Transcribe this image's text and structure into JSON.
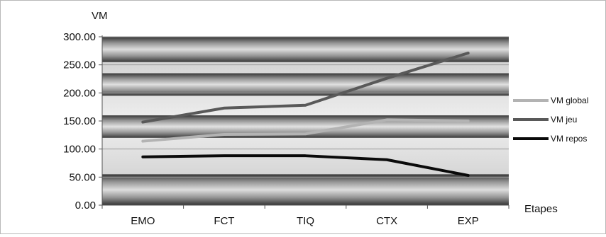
{
  "chart_data": {
    "type": "line",
    "title": "",
    "ylabel": "VM",
    "xlabel": "Etapes",
    "categories": [
      "EMO",
      "FCT",
      "TIQ",
      "CTX",
      "EXP"
    ],
    "ylim": [
      0,
      300
    ],
    "yticks": [
      "0.00",
      "50.00",
      "100.00",
      "150.00",
      "200.00",
      "250.00",
      "300.00"
    ],
    "legend_position": "right",
    "series": [
      {
        "name": "VM global",
        "color": "#b3b3b3",
        "values": [
          114,
          126,
          127,
          152,
          150
        ]
      },
      {
        "name": "VM  jeu",
        "color": "#595959",
        "values": [
          148,
          173,
          178,
          226,
          271
        ]
      },
      {
        "name": "VM repos",
        "color": "#0a0a0a",
        "values": [
          86,
          88,
          88,
          81,
          53
        ]
      }
    ]
  }
}
